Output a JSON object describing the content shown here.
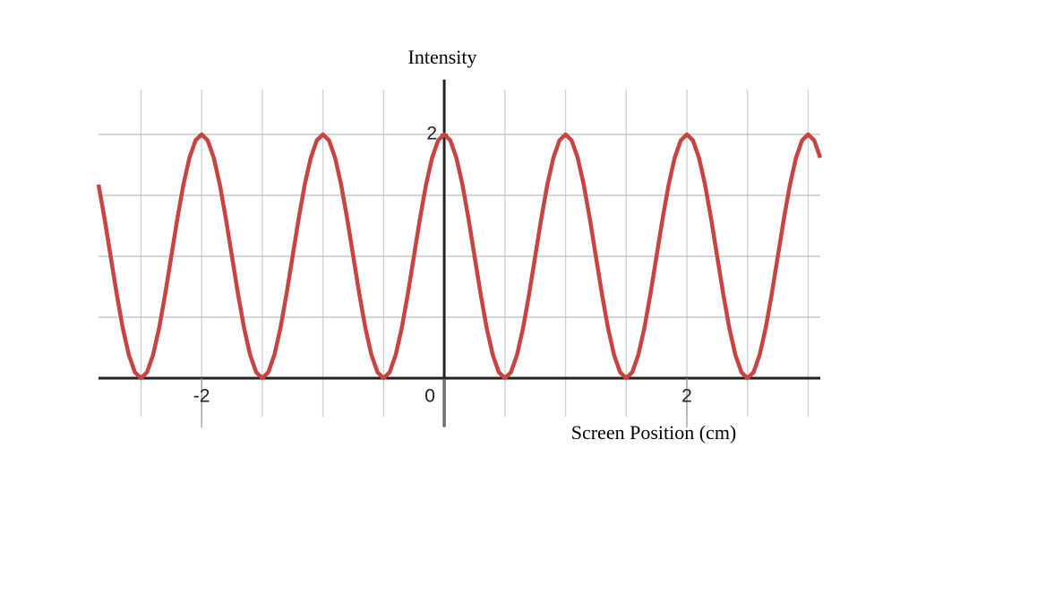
{
  "chart_data": {
    "type": "line",
    "ylabel": "Intensity",
    "xlabel": "Screen Position (cm)",
    "x": [
      -2.85,
      -2.8,
      -2.75,
      -2.7,
      -2.65,
      -2.6,
      -2.55,
      -2.5,
      -2.45,
      -2.4,
      -2.35,
      -2.3,
      -2.25,
      -2.2,
      -2.15,
      -2.1,
      -2.05,
      -2,
      -1.95,
      -1.9,
      -1.85,
      -1.8,
      -1.75,
      -1.7,
      -1.65,
      -1.6,
      -1.55,
      -1.5,
      -1.45,
      -1.4,
      -1.35,
      -1.3,
      -1.25,
      -1.2,
      -1.15,
      -1.1,
      -1.05,
      -1,
      -0.95,
      -0.9,
      -0.85,
      -0.8,
      -0.75,
      -0.7,
      -0.65,
      -0.6,
      -0.55,
      -0.5,
      -0.45,
      -0.4,
      -0.35,
      -0.3,
      -0.25,
      -0.2,
      -0.15,
      -0.1,
      -0.05,
      0,
      0.05,
      0.1,
      0.15,
      0.2,
      0.25,
      0.3,
      0.35,
      0.4,
      0.45,
      0.5,
      0.55,
      0.6,
      0.65,
      0.7,
      0.75,
      0.8,
      0.85,
      0.9,
      0.95,
      1,
      1.05,
      1.1,
      1.15,
      1.2,
      1.25,
      1.3,
      1.35,
      1.4,
      1.45,
      1.5,
      1.55,
      1.6,
      1.65,
      1.7,
      1.75,
      1.8,
      1.85,
      1.9,
      1.95,
      2,
      2.05,
      2.1,
      2.15,
      2.2,
      2.25,
      2.3,
      2.35,
      2.4,
      2.45,
      2.5,
      2.55,
      2.6,
      2.65,
      2.7,
      2.75,
      2.8,
      2.85,
      2.9,
      2.95,
      3,
      3.05,
      3.1
    ],
    "series": [
      {
        "color": "#c74440",
        "values": [
          1.588,
          1.309,
          1,
          0.691,
          0.412,
          0.191,
          0.049,
          0,
          0.049,
          0.191,
          0.412,
          0.691,
          1,
          1.309,
          1.588,
          1.809,
          1.951,
          2,
          1.951,
          1.809,
          1.588,
          1.309,
          1,
          0.691,
          0.412,
          0.191,
          0.049,
          0,
          0.049,
          0.191,
          0.412,
          0.691,
          1,
          1.309,
          1.588,
          1.809,
          1.951,
          2,
          1.951,
          1.809,
          1.588,
          1.309,
          1,
          0.691,
          0.412,
          0.191,
          0.049,
          0,
          0.049,
          0.191,
          0.412,
          0.691,
          1,
          1.309,
          1.588,
          1.809,
          1.951,
          2,
          1.951,
          1.809,
          1.588,
          1.309,
          1,
          0.691,
          0.412,
          0.191,
          0.049,
          0,
          0.049,
          0.191,
          0.412,
          0.691,
          1,
          1.309,
          1.588,
          1.809,
          1.951,
          2,
          1.951,
          1.809,
          1.588,
          1.309,
          1,
          0.691,
          0.412,
          0.191,
          0.049,
          0,
          0.049,
          0.191,
          0.412,
          0.691,
          1,
          1.309,
          1.588,
          1.809,
          1.951,
          2,
          1.951,
          1.809,
          1.588,
          1.309,
          1,
          0.691,
          0.412,
          0.191,
          0.049,
          0,
          0.049,
          0.191,
          0.412,
          0.691,
          1,
          1.309,
          1.588,
          1.809,
          1.951,
          2,
          1.951,
          1.809
        ]
      }
    ],
    "xlim": [
      -2.85,
      3.1
    ],
    "ylim": [
      -0.4,
      2.45
    ],
    "xticks": [
      -2,
      0,
      2
    ],
    "yticks": [
      0,
      2
    ],
    "xgrid": [
      -2.5,
      -2,
      -1.5,
      -1,
      -0.5,
      0,
      0.5,
      1,
      1.5,
      2,
      2.5,
      3
    ],
    "ygrid": [
      0,
      0.5,
      1,
      1.5,
      2
    ],
    "grid": true
  }
}
